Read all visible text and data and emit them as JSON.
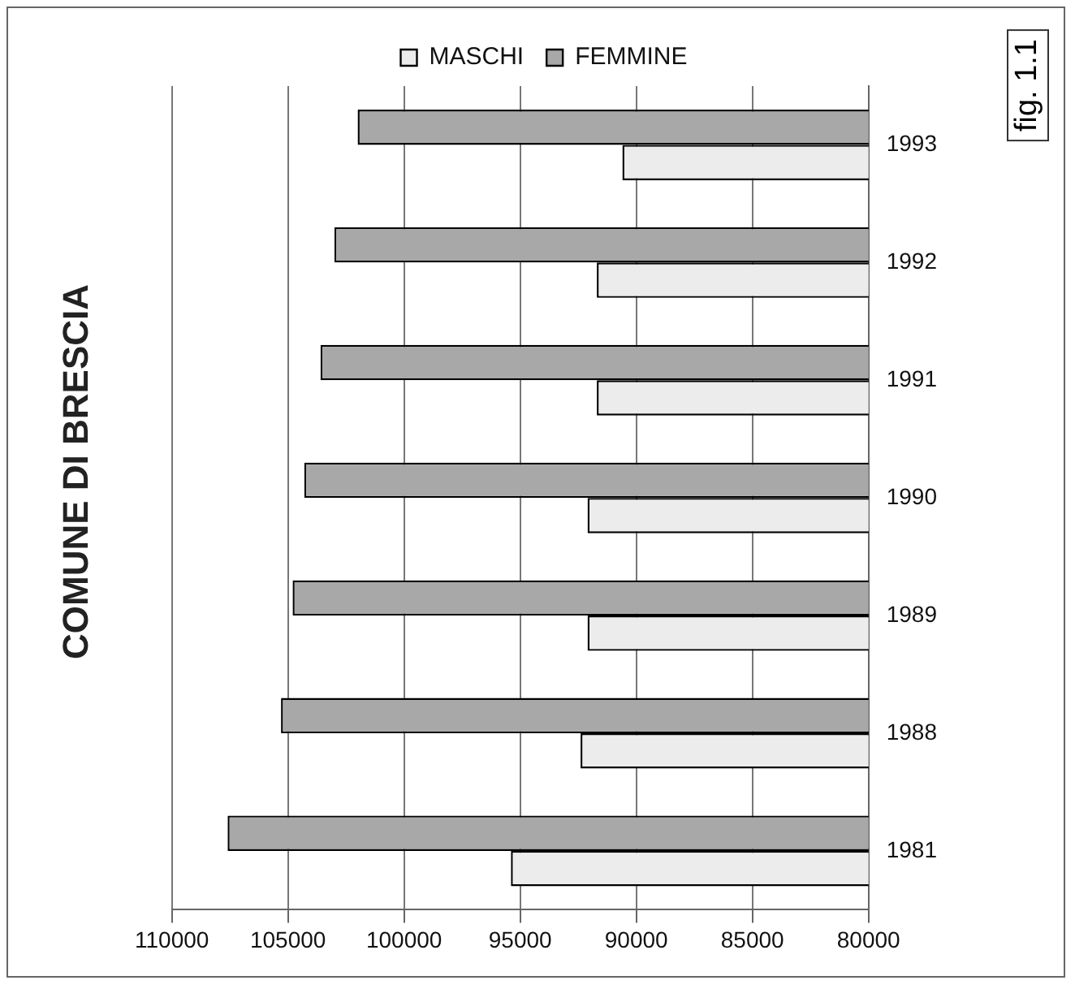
{
  "chart_data": {
    "type": "bar",
    "title": "COMUNE DI BRESCIA",
    "orientation": "horizontal",
    "categories": [
      "1993",
      "1992",
      "1991",
      "1990",
      "1989",
      "1988",
      "1981"
    ],
    "series": [
      {
        "name": "FEMMINE",
        "color": "#a8a8a8",
        "values": [
          102000,
          103000,
          103600,
          104300,
          104800,
          105300,
          107600
        ]
      },
      {
        "name": "MASCHI",
        "color": "#ececec",
        "values": [
          90600,
          91700,
          91700,
          92100,
          92100,
          92400,
          95400
        ]
      }
    ],
    "xlim": [
      110000,
      80000
    ],
    "xticks": [
      110000,
      105000,
      100000,
      95000,
      90000,
      85000,
      80000
    ],
    "grid": "x",
    "legend": "top",
    "annotations": [
      "fig. 1.1"
    ]
  }
}
